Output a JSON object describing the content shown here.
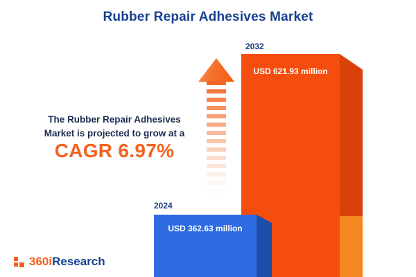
{
  "title": "Rubber Repair Adhesives Market",
  "description": {
    "line1": "The Rubber Repair Adhesives",
    "line2": "Market is projected to grow at a",
    "cagr": "CAGR 6.97%"
  },
  "logo": {
    "prefix": "360i",
    "suffix": "Research"
  },
  "colors": {
    "navy": "#17418f",
    "text_navy": "#1c2c50",
    "accent_orange": "#f4611d",
    "bar_2024_front": "#2f6be0",
    "bar_2024_side": "#1c4da9",
    "bar_2032_front": "#f44d0d",
    "bar_2032_side_top": "#d84108",
    "bar_2032_side_bottom": "#f5871f"
  },
  "chart_data": {
    "type": "bar",
    "title": "Rubber Repair Adhesives Market",
    "categories": [
      "2024",
      "2032"
    ],
    "values": [
      362.63,
      621.93
    ],
    "value_labels": [
      "USD 362.63 million",
      "USD 621.93 million"
    ],
    "unit": "USD million",
    "cagr_percent": 6.97,
    "ylim": [
      0,
      650
    ],
    "grid": false,
    "legend": "none"
  }
}
